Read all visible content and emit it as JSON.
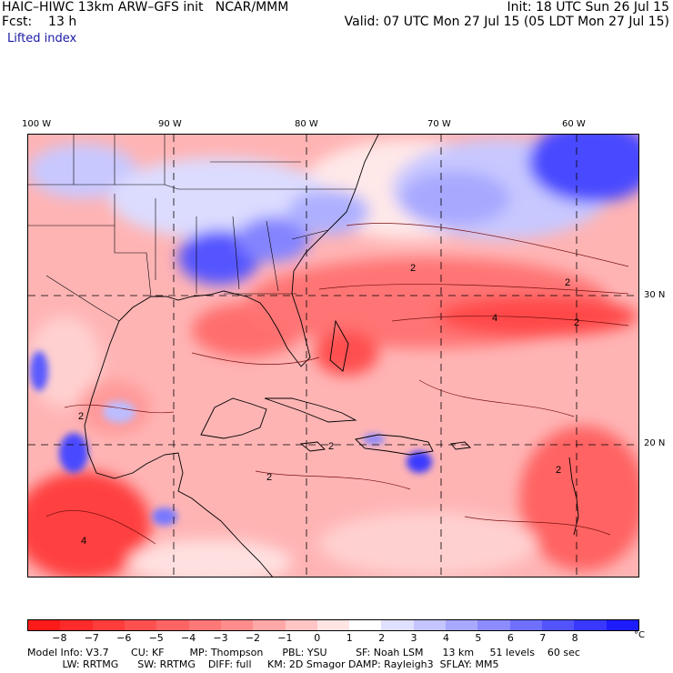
{
  "header": {
    "title": "HAIC–HIWC 13km ARW–GFS init   NCAR/MMM",
    "init": "Init: 18 UTC Sun 26 Jul 15",
    "fcst": "Fcst:    13 h",
    "valid": "Valid: 07 UTC Mon 27 Jul 15 (05 LDT Mon 27 Jul 15)",
    "field": "Lifted index"
  },
  "map": {
    "lon_labels": [
      "100 W",
      "90 W",
      "80 W",
      "70 W",
      "60 W"
    ],
    "lat_labels": [
      "30 N",
      "20 N"
    ],
    "contour_labels": [
      "2",
      "2",
      "2",
      "4",
      "2",
      "2",
      "2",
      "4",
      "2"
    ]
  },
  "colorbar": {
    "ticks": [
      "−8",
      "−7",
      "−6",
      "−5",
      "−4",
      "−3",
      "−2",
      "−1",
      "0",
      "1",
      "2",
      "3",
      "4",
      "5",
      "6",
      "7",
      "8"
    ],
    "unit": "°C",
    "colors": [
      "#ff1a1a",
      "#ff2a2a",
      "#ff3c3c",
      "#ff5050",
      "#ff6464",
      "#ff7878",
      "#ff8c8c",
      "#ffa8a8",
      "#ffc4c4",
      "#ffe4e4",
      "#ffffff",
      "#e0e0ff",
      "#c4c4ff",
      "#a8a8ff",
      "#8c8cff",
      "#7070ff",
      "#5454ff",
      "#3838ff",
      "#1c1cff"
    ]
  },
  "footer": {
    "line1": "Model Info: V3.7       CU: KF        MP: Thompson      PBL: YSU         SF: Noah LSM      13 km     51 levels    60 sec",
    "line2": "           LW: RRTMG      SW: RRTMG    DIFF: full     KM: 2D Smagor DAMP: Rayleigh3  SFLAY: MM5"
  }
}
